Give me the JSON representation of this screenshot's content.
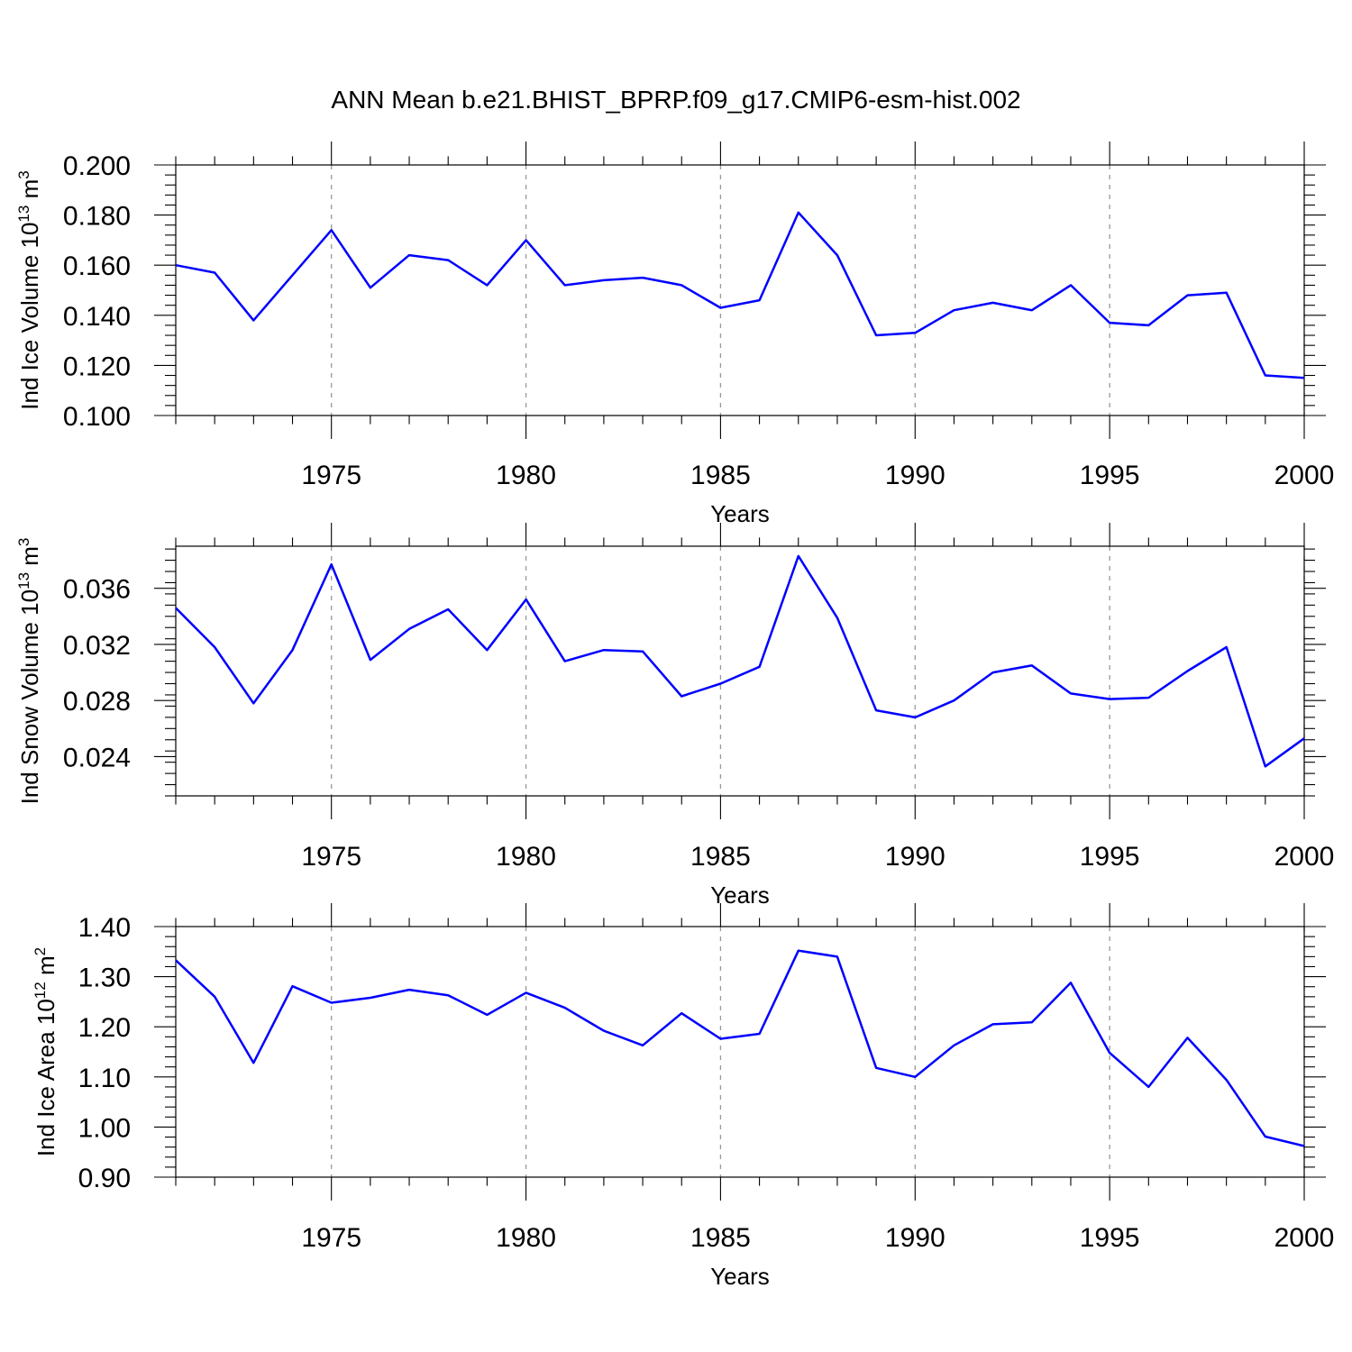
{
  "title": "ANN Mean b.e21.BHIST_BPRP.f09_g17.CMIP6-esm-hist.002",
  "style": {
    "line_color": "#0000ff",
    "grid_color": "#999999",
    "axis_color": "#000000"
  },
  "chart_data": [
    {
      "type": "line",
      "ylabel": "Ind Ice Volume 10",
      "ylabel_sup": "13",
      "ylabel_unit": "m",
      "ylabel_unit_sup": "3",
      "xlabel": "Years",
      "xlim": [
        1971,
        2000
      ],
      "ylim": [
        0.1,
        0.2
      ],
      "x_ticks": [
        1975,
        1980,
        1985,
        1990,
        1995,
        2000
      ],
      "y_ticks": [
        0.1,
        0.12,
        0.14,
        0.16,
        0.18,
        0.2
      ],
      "y_tick_labels": [
        "0.100",
        "0.120",
        "0.140",
        "0.160",
        "0.180",
        "0.200"
      ],
      "x_minor_step": 1,
      "y_minor_step": 0.004,
      "grid": "vertical dashed at major x ticks",
      "x": [
        1971,
        1972,
        1973,
        1974,
        1975,
        1976,
        1977,
        1978,
        1979,
        1980,
        1981,
        1982,
        1983,
        1984,
        1985,
        1986,
        1987,
        1988,
        1989,
        1990,
        1991,
        1992,
        1993,
        1994,
        1995,
        1996,
        1997,
        1998,
        1999,
        2000
      ],
      "y": [
        0.16,
        0.157,
        0.138,
        0.156,
        0.174,
        0.151,
        0.164,
        0.162,
        0.152,
        0.17,
        0.152,
        0.154,
        0.155,
        0.152,
        0.143,
        0.146,
        0.181,
        0.164,
        0.132,
        0.133,
        0.142,
        0.145,
        0.142,
        0.152,
        0.137,
        0.136,
        0.148,
        0.149,
        0.116,
        0.115
      ]
    },
    {
      "type": "line",
      "ylabel": "Ind Snow Volume 10",
      "ylabel_sup": "13",
      "ylabel_unit": "m",
      "ylabel_unit_sup": "3",
      "xlabel": "Years",
      "xlim": [
        1971,
        2000
      ],
      "ylim": [
        0.0212,
        0.039
      ],
      "x_ticks": [
        1975,
        1980,
        1985,
        1990,
        1995,
        2000
      ],
      "y_ticks": [
        0.024,
        0.028,
        0.032,
        0.036
      ],
      "y_tick_labels": [
        "0.024",
        "0.028",
        "0.032",
        "0.036"
      ],
      "x_minor_step": 1,
      "y_minor_step": 0.0008,
      "grid": "vertical dashed at major x ticks",
      "x": [
        1971,
        1972,
        1973,
        1974,
        1975,
        1976,
        1977,
        1978,
        1979,
        1980,
        1981,
        1982,
        1983,
        1984,
        1985,
        1986,
        1987,
        1988,
        1989,
        1990,
        1991,
        1992,
        1993,
        1994,
        1995,
        1996,
        1997,
        1998,
        1999,
        2000
      ],
      "y": [
        0.0346,
        0.0318,
        0.0278,
        0.0316,
        0.0377,
        0.0309,
        0.0331,
        0.0345,
        0.0316,
        0.0352,
        0.0308,
        0.0316,
        0.0315,
        0.0283,
        0.0292,
        0.0304,
        0.0383,
        0.0339,
        0.0273,
        0.0268,
        0.028,
        0.03,
        0.0305,
        0.0285,
        0.0281,
        0.0282,
        0.0301,
        0.0318,
        0.0233,
        0.0253
      ]
    },
    {
      "type": "line",
      "ylabel": "Ind Ice Area 10",
      "ylabel_sup": "12",
      "ylabel_unit": "m",
      "ylabel_unit_sup": "2",
      "xlabel": "Years",
      "xlim": [
        1971,
        2000
      ],
      "ylim": [
        0.9,
        1.4
      ],
      "x_ticks": [
        1975,
        1980,
        1985,
        1990,
        1995,
        2000
      ],
      "y_ticks": [
        0.9,
        1.0,
        1.1,
        1.2,
        1.3,
        1.4
      ],
      "y_tick_labels": [
        "0.90",
        "1.00",
        "1.10",
        "1.20",
        "1.30",
        "1.40"
      ],
      "x_minor_step": 1,
      "y_minor_step": 0.02,
      "grid": "vertical dashed at major x ticks",
      "x": [
        1971,
        1972,
        1973,
        1974,
        1975,
        1976,
        1977,
        1978,
        1979,
        1980,
        1981,
        1982,
        1983,
        1984,
        1985,
        1986,
        1987,
        1988,
        1989,
        1990,
        1991,
        1992,
        1993,
        1994,
        1995,
        1996,
        1997,
        1998,
        1999,
        2000
      ],
      "y": [
        1.333,
        1.26,
        1.128,
        1.281,
        1.248,
        1.258,
        1.274,
        1.263,
        1.224,
        1.268,
        1.238,
        1.192,
        1.163,
        1.227,
        1.176,
        1.186,
        1.352,
        1.34,
        1.118,
        1.1,
        1.163,
        1.205,
        1.209,
        1.288,
        1.148,
        1.08,
        1.178,
        1.094,
        0.981,
        0.962
      ]
    }
  ]
}
